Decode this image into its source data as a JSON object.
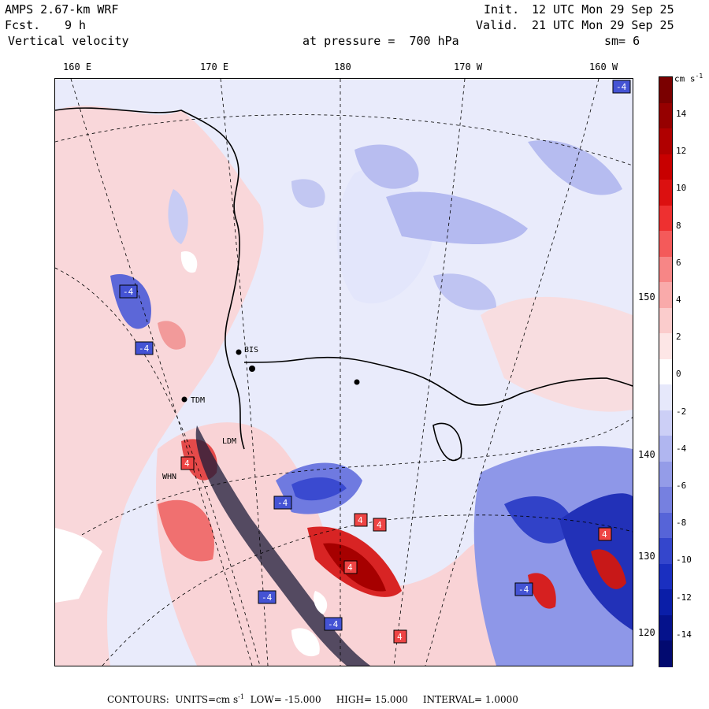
{
  "header": {
    "model": "AMPS 2.67-km WRF",
    "fcst_label": "Fcst.",
    "fcst_value": "9 h",
    "field": "Vertical velocity",
    "init_label": "Init.",
    "init_value": "12 UTC Mon 29 Sep 25",
    "valid_label": "Valid.",
    "valid_value": "21 UTC Mon 29 Sep 25",
    "level": "at pressure =  700 hPa",
    "smoothing": "sm= 6"
  },
  "lon_labels": [
    "160 E",
    "170 E",
    "180",
    "170 W",
    "160 W"
  ],
  "lat_labels": [
    "150 W",
    "140 W",
    "130 W",
    "120 W"
  ],
  "colorbar": {
    "unit": "cm s",
    "unit_exp": "-1",
    "ticks": [
      "14",
      "12",
      "10",
      "8",
      "6",
      "4",
      "2",
      "0",
      "-2",
      "-4",
      "-6",
      "-8",
      "-10",
      "-12",
      "-14"
    ],
    "colors": [
      "#7a0000",
      "#960000",
      "#b00000",
      "#c80000",
      "#dc1010",
      "#ee3030",
      "#f45a5a",
      "#f78686",
      "#f9aaaa",
      "#fbcccc",
      "#fde6e6",
      "#ffffff",
      "#e6e8fb",
      "#cccff6",
      "#b0b6f0",
      "#949ce8",
      "#7680e0",
      "#5664d8",
      "#3446cc",
      "#1a2fc0",
      "#0a1ea8",
      "#05128c",
      "#020a70"
    ]
  },
  "station_labels": [
    "BIS",
    "TDM",
    "LDM",
    "WHN"
  ],
  "footer": {
    "contours_label": "CONTOURS:",
    "units_label": "UNITS=cm s",
    "units_exp": "-1",
    "low": "LOW= -15.000",
    "high": "HIGH= 15.000",
    "interval": "INTERVAL= 1.0000"
  }
}
